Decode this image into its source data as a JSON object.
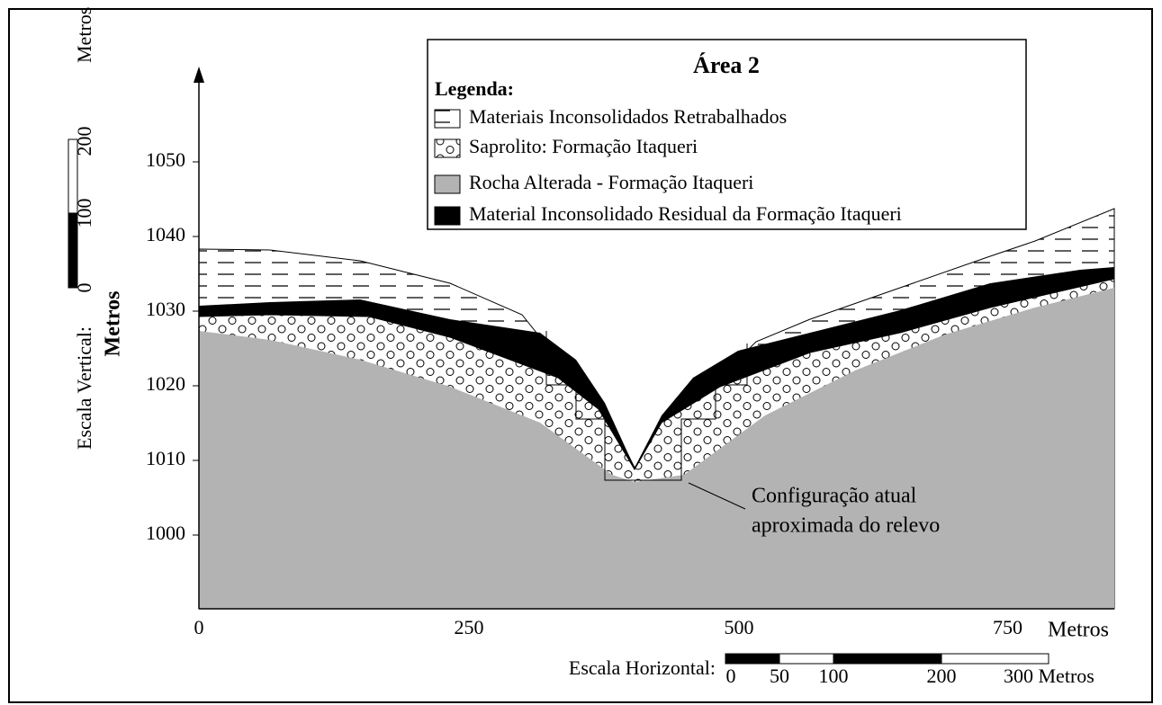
{
  "title": "Área 2",
  "legend": {
    "heading": "Legenda:",
    "items": [
      "Materiais Inconsolidados Retrabalhados",
      "Saprolito: Formação Itaqueri",
      "Rocha Alterada - Formação Itaqueri",
      "Material Inconsolidado Residual da Formação Itaqueri"
    ]
  },
  "y_axis": {
    "label": "Metros",
    "ticks": [
      "1050",
      "1040",
      "1030",
      "1020",
      "1010",
      "1000"
    ]
  },
  "x_axis": {
    "unit": "Metros",
    "ticks": [
      "0",
      "250",
      "500",
      "750"
    ]
  },
  "vertical_scale": {
    "label": "Escala Vertical:",
    "ticks": [
      "0",
      "100",
      "200",
      "Metros"
    ]
  },
  "horizontal_scale": {
    "label": "Escala Horizontal:",
    "ticks": [
      "0",
      "50",
      "100",
      "200",
      "300 Metros"
    ]
  },
  "annotation": [
    "Configuração atual",
    "aproximada do relevo"
  ]
}
